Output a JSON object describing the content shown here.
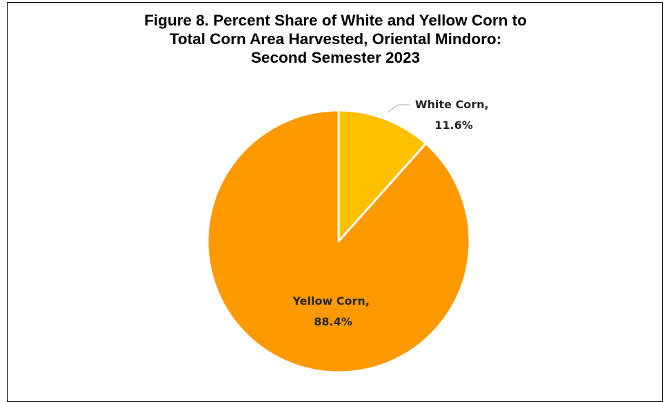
{
  "chart_data": {
    "type": "pie",
    "title_lines": [
      "Figure 8. Percent Share of White and Yellow Corn to",
      "Total Corn Area Harvested, Oriental Mindoro:",
      "Second Semester 2023"
    ],
    "slices": [
      {
        "name": "White Corn",
        "value": 11.6,
        "label_line1": "White Corn,",
        "label_line2": "11.6%",
        "color": "#FFC000"
      },
      {
        "name": "Yellow Corn",
        "value": 88.4,
        "label_line1": "Yellow Corn,",
        "label_line2": "88.4%",
        "color": "#FF9900"
      }
    ],
    "start_angle": "12 o'clock",
    "direction": "clockwise",
    "slice_border_color": "#FFFFFF",
    "legend": "none"
  }
}
